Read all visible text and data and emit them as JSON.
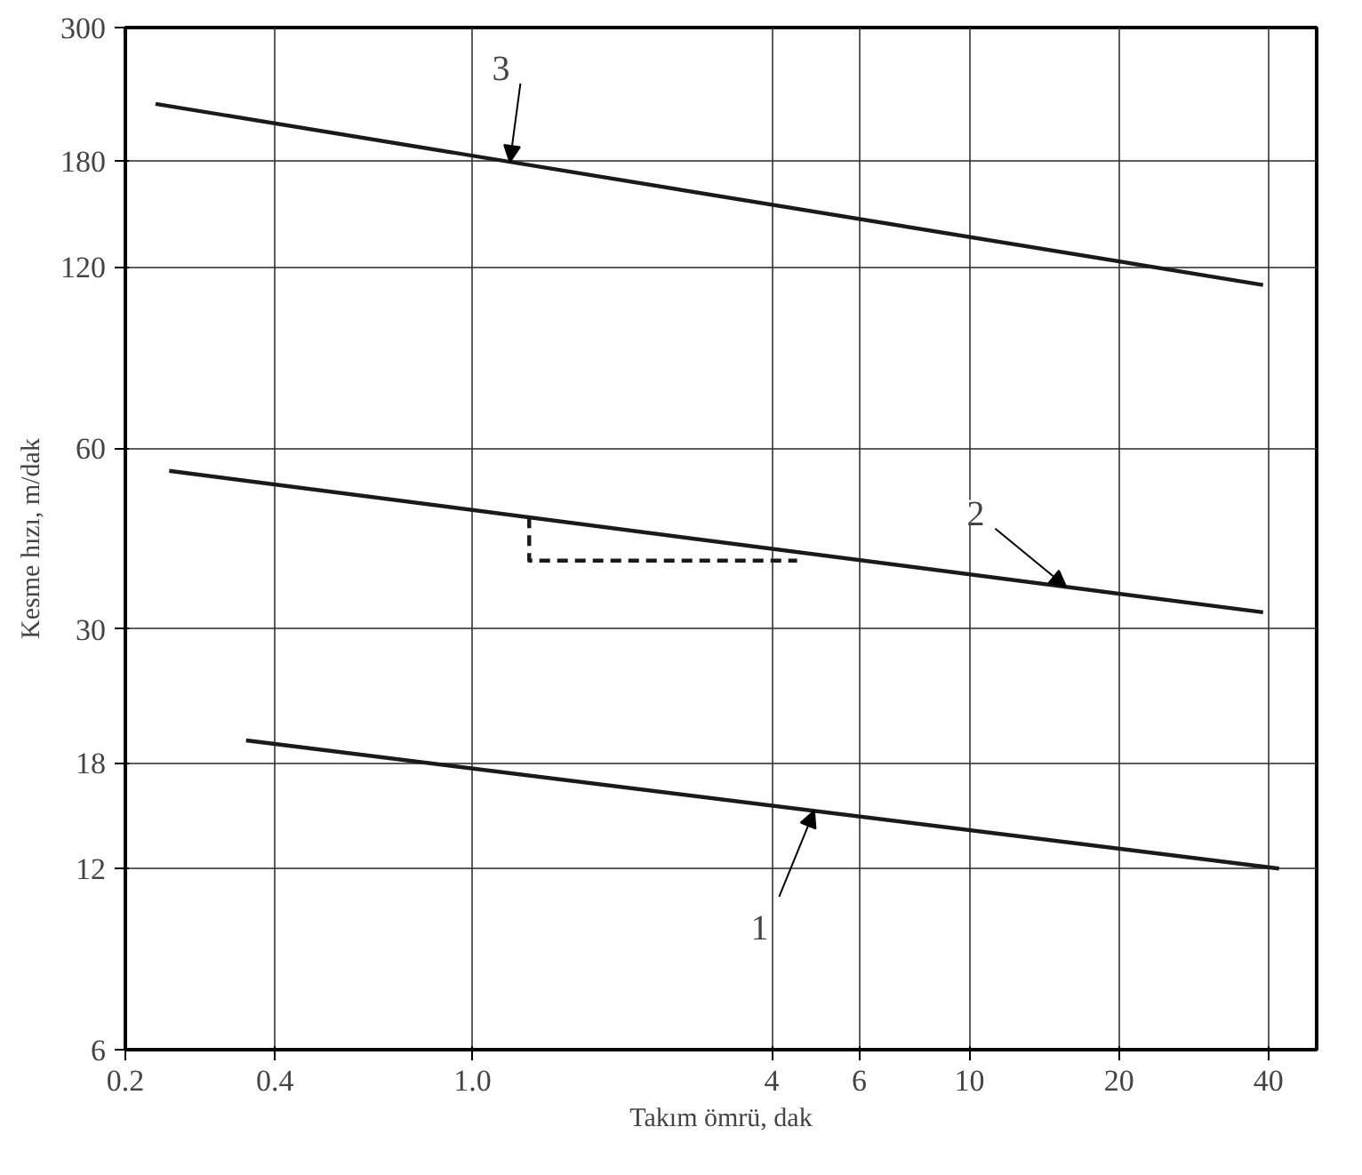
{
  "chart_data": {
    "type": "line",
    "xlabel": "Takım ömrü, dak",
    "ylabel": "Kesme hızı, m/dak",
    "log": "xy",
    "grid": true,
    "marker": "none",
    "line_style": "solid",
    "xlim": [
      0.2,
      50
    ],
    "ylim": [
      6,
      300
    ],
    "xticks": [
      0.2,
      0.4,
      {
        "value": 1,
        "label": "1.0"
      },
      4,
      6,
      10,
      20,
      40
    ],
    "yticks": [
      6,
      12,
      18,
      30,
      60,
      120,
      180,
      300
    ],
    "series": [
      {
        "name": "1",
        "color": "#1a1a1a",
        "x": [
          0.35,
          42
        ],
        "values": [
          19.6,
          12
        ]
      },
      {
        "name": "2",
        "color": "#1a1a1a",
        "x": [
          0.245,
          39
        ],
        "values": [
          55,
          32
        ]
      },
      {
        "name": "3",
        "color": "#1a1a1a",
        "x": [
          0.23,
          39
        ],
        "values": [
          224,
          112
        ]
      },
      {
        "color": "#1a1a1a",
        "x": [
          1.3,
          1.3,
          4.5
        ],
        "values": [
          46,
          39,
          39
        ],
        "line_style": "dashed"
      }
    ]
  }
}
